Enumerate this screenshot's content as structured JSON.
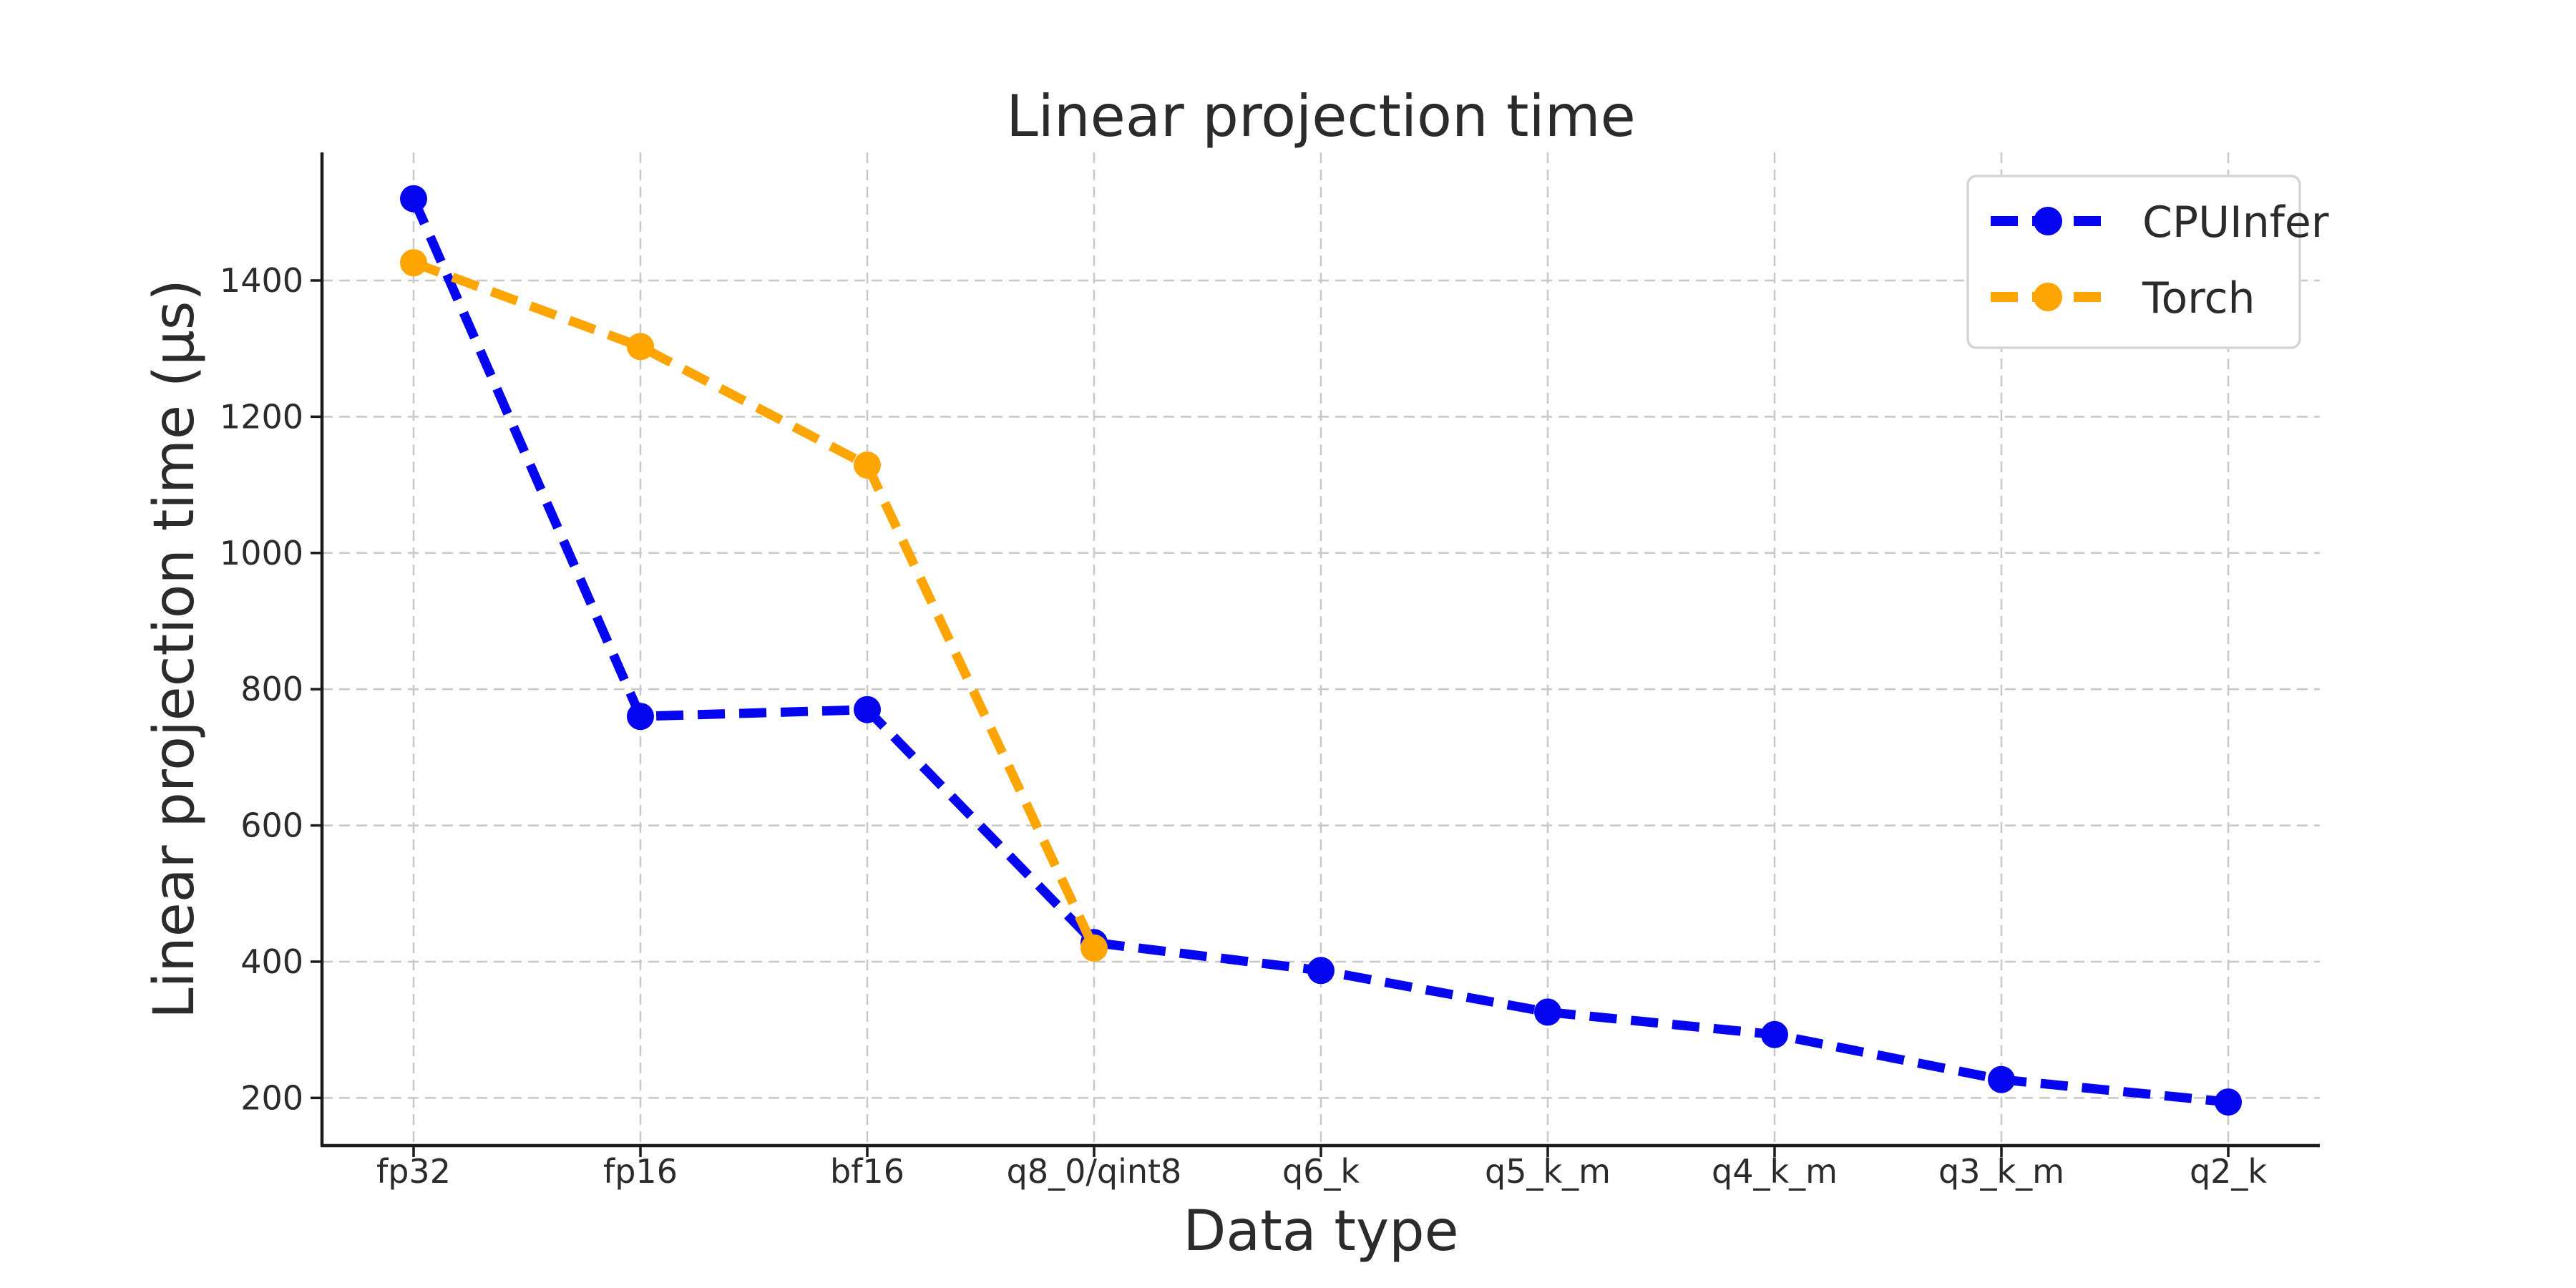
{
  "figure": {
    "background": "#ffffff"
  },
  "chart_data": {
    "type": "line",
    "title": "Linear projection time",
    "xlabel": "Data type",
    "ylabel": "Linear projection time (μs)",
    "categories": [
      "fp32",
      "fp16",
      "bf16",
      "q8_0/qint8",
      "q6_k",
      "q5_k_m",
      "q4_k_m",
      "q3_k_m",
      "q2_k"
    ],
    "series": [
      {
        "name": "CPUInfer",
        "color": "#0505f0",
        "line_style": "dashed",
        "marker": "circle",
        "values": [
          1520,
          760,
          770,
          428,
          387,
          326,
          293,
          227,
          194
        ]
      },
      {
        "name": "Torch",
        "color": "#ffa502",
        "line_style": "dashed",
        "marker": "circle",
        "values": [
          1426,
          1303,
          1129,
          420,
          null,
          null,
          null,
          null,
          null
        ]
      }
    ],
    "yticks": [
      200,
      400,
      600,
      800,
      1000,
      1200,
      1400
    ],
    "ylim": [
      130,
      1588
    ],
    "grid": true,
    "grid_color": "#c8c8c8",
    "legend_position": "upper right",
    "legend_labels": [
      "CPUInfer",
      "Torch"
    ],
    "axis_color": "#1a1a1a",
    "text_color": "#2b2b2b"
  }
}
